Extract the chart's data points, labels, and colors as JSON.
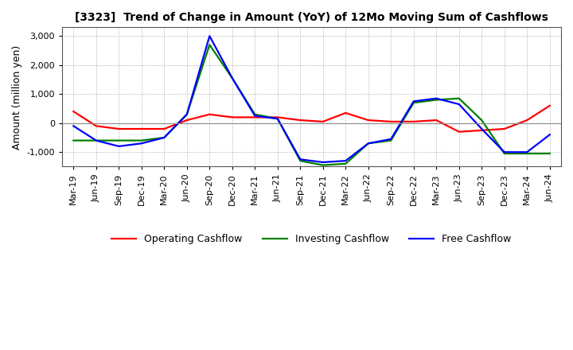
{
  "title": "[3323]  Trend of Change in Amount (YoY) of 12Mo Moving Sum of Cashflows",
  "ylabel": "Amount (million yen)",
  "x_labels": [
    "Mar-19",
    "Jun-19",
    "Sep-19",
    "Dec-19",
    "Mar-20",
    "Jun-20",
    "Sep-20",
    "Dec-20",
    "Mar-21",
    "Jun-21",
    "Sep-21",
    "Dec-21",
    "Mar-22",
    "Jun-22",
    "Sep-22",
    "Dec-22",
    "Mar-23",
    "Jun-23",
    "Sep-23",
    "Dec-23",
    "Mar-24",
    "Jun-24"
  ],
  "operating": [
    400,
    -100,
    -200,
    -200,
    -200,
    100,
    300,
    200,
    200,
    200,
    100,
    50,
    350,
    100,
    50,
    50,
    100,
    -300,
    -250,
    -200,
    100,
    600
  ],
  "investing": [
    -600,
    -600,
    -600,
    -600,
    -500,
    300,
    2700,
    1550,
    300,
    150,
    -1300,
    -1450,
    -1400,
    -700,
    -600,
    700,
    800,
    850,
    100,
    -1050,
    -1050,
    -1050
  ],
  "free": [
    -100,
    -600,
    -800,
    -700,
    -500,
    300,
    3000,
    1550,
    250,
    150,
    -1250,
    -1350,
    -1300,
    -700,
    -550,
    750,
    850,
    650,
    -200,
    -1000,
    -1000,
    -400
  ],
  "ylim": [
    -1500,
    3300
  ],
  "yticks": [
    -1000,
    0,
    1000,
    2000,
    3000
  ],
  "colors": {
    "operating": "#ff0000",
    "investing": "#008000",
    "free": "#0000ff"
  },
  "legend_labels": [
    "Operating Cashflow",
    "Investing Cashflow",
    "Free Cashflow"
  ],
  "background_color": "#ffffff",
  "grid_color": "#999999"
}
